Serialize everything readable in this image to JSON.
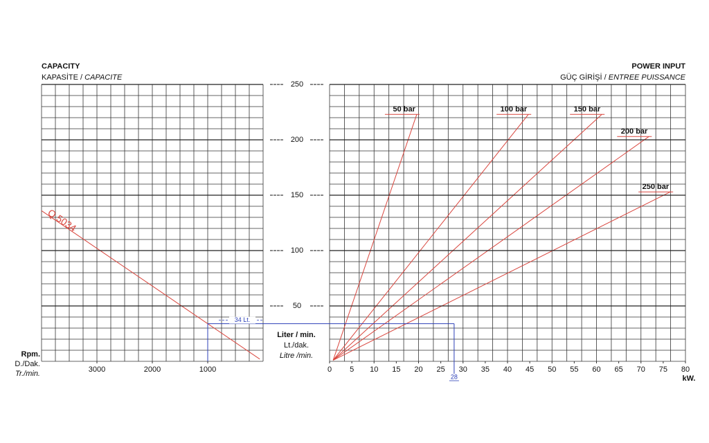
{
  "chart_data": [
    {
      "type": "line",
      "title": "CAPACITY",
      "subtitle": "KAPASİTE /",
      "subtitle_alt": "CAPACITE",
      "xlabel": [
        "Rpm.",
        "D./Dak.",
        "Tr./min."
      ],
      "ylabel": [
        "Liter / min.",
        "Lt./dak.",
        "Litre /min."
      ],
      "xlim": [
        4000,
        0
      ],
      "xticks": [
        3000,
        2000,
        1000
      ],
      "ylim": [
        0,
        250
      ],
      "yticks": [
        50,
        100,
        150,
        200,
        250
      ],
      "grid": true,
      "series": [
        {
          "name": "Q 5034",
          "color": "#d9463e",
          "x": [
            4000,
            60
          ],
          "values": [
            136,
            2
          ]
        }
      ],
      "example": {
        "x": 1000,
        "value": 34,
        "value_label": "34 Lt.",
        "color": "#2b3fb8"
      }
    },
    {
      "type": "line",
      "title": "POWER INPUT",
      "subtitle": "GÜÇ GİRİŞİ /",
      "subtitle_alt": "ENTREE PUISSANCE",
      "xlabel": "kW.",
      "xlim": [
        0,
        80
      ],
      "xticks": [
        0,
        5,
        10,
        15,
        20,
        25,
        30,
        35,
        40,
        45,
        50,
        55,
        60,
        65,
        70,
        75,
        80
      ],
      "ylim": [
        0,
        250
      ],
      "grid": true,
      "series": [
        {
          "name": "50 bar",
          "color": "#d9463e",
          "x": [
            0.8,
            19.6
          ],
          "values": [
            1,
            223
          ]
        },
        {
          "name": "100 bar",
          "color": "#d9463e",
          "x": [
            0.8,
            44.7
          ],
          "values": [
            1,
            223
          ]
        },
        {
          "name": "150 bar",
          "color": "#d9463e",
          "x": [
            0.8,
            61.2
          ],
          "values": [
            1,
            223
          ]
        },
        {
          "name": "200 bar",
          "color": "#d9463e",
          "x": [
            0.8,
            71.8
          ],
          "values": [
            1,
            203
          ]
        },
        {
          "name": "250 bar",
          "color": "#d9463e",
          "x": [
            0.8,
            76.6
          ],
          "values": [
            1,
            153
          ]
        }
      ],
      "example": {
        "x": 28
      }
    }
  ]
}
